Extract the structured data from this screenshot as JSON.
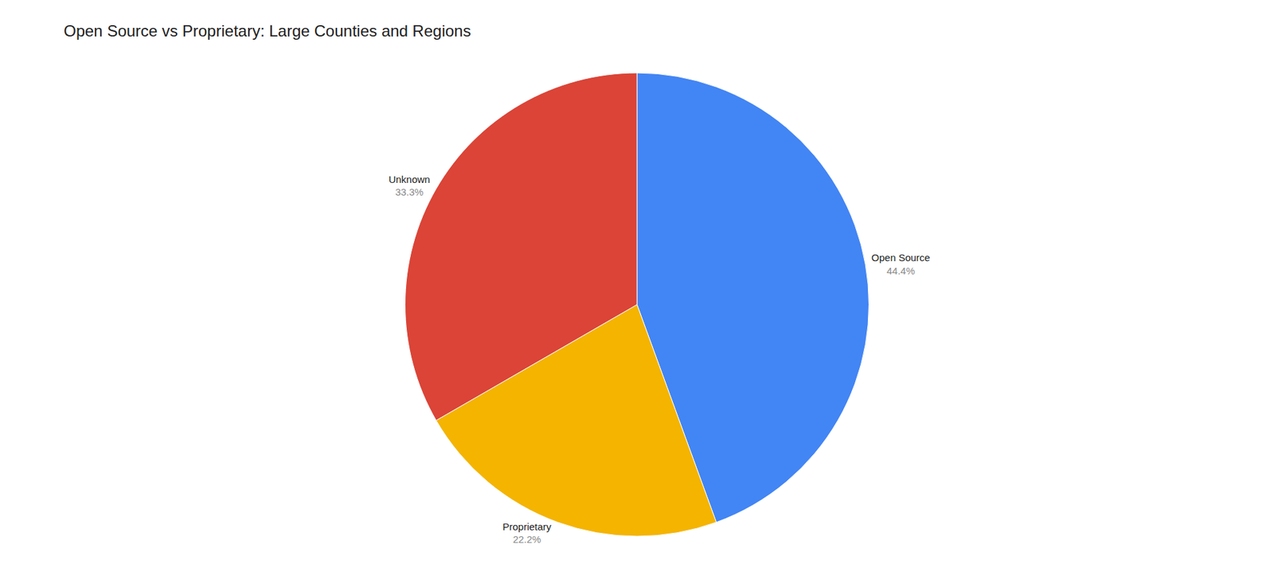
{
  "chart_data": {
    "type": "pie",
    "title": "Open Source vs Proprietary: Large Counties and Regions",
    "categories": [
      "Open Source",
      "Proprietary",
      "Unknown"
    ],
    "values": [
      44.4,
      22.2,
      33.3
    ],
    "value_labels": [
      "44.4%",
      "22.2%",
      "33.3%"
    ],
    "colors": [
      "#4285F4",
      "#F4B400",
      "#DB4437"
    ],
    "data_labels": true,
    "legend": false
  }
}
